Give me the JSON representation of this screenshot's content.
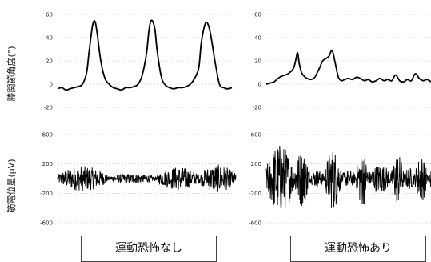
{
  "labels": {
    "row1_ylabel": "膝関節角度(°)",
    "row2_ylabel": "筋電位量(μV)",
    "col1_caption": "運動恐怖なし",
    "col2_caption": "運動恐怖あり"
  },
  "chart_data": [
    {
      "type": "line",
      "panel": "top-left",
      "ylabel": "膝関節角度(°)",
      "ylim": [
        -20,
        60
      ],
      "yticks": [
        60,
        40,
        20,
        0,
        -20
      ],
      "grid": "dashed horizontal",
      "x": [
        0,
        5,
        10,
        15,
        20,
        25,
        30,
        35,
        38,
        42,
        45,
        48,
        52,
        57,
        62,
        67,
        72,
        77,
        82,
        87,
        92,
        97,
        102,
        107,
        110,
        113,
        117,
        120,
        125,
        130,
        135,
        140,
        145,
        150,
        155,
        160,
        165,
        170,
        173,
        177,
        180,
        184,
        190,
        195,
        200,
        205,
        210
      ],
      "series": [
        {
          "values": [
            -4,
            -3,
            -5,
            -4,
            -3,
            -2,
            0,
            10,
            28,
            50,
            54,
            42,
            20,
            5,
            0,
            -3,
            -4,
            -5,
            -3,
            -3,
            -2,
            0,
            8,
            26,
            46,
            55,
            48,
            28,
            6,
            -1,
            -3,
            -4,
            -3,
            -3,
            -2,
            0,
            5,
            14,
            35,
            50,
            53,
            44,
            18,
            0,
            -3,
            -4,
            -3
          ]
        }
      ]
    },
    {
      "type": "line",
      "panel": "top-right",
      "ylim": [
        -20,
        60
      ],
      "yticks": [
        60,
        40,
        20,
        0,
        -20
      ],
      "grid": "dashed horizontal",
      "x": [
        0,
        5,
        10,
        15,
        20,
        25,
        30,
        35,
        38,
        40,
        42,
        45,
        48,
        52,
        57,
        62,
        65,
        68,
        72,
        76,
        80,
        84,
        88,
        92,
        96,
        100,
        105,
        110,
        115,
        120,
        125,
        130,
        135,
        140,
        145,
        150,
        155,
        160,
        165,
        170,
        175,
        180,
        185,
        190,
        195,
        200,
        205,
        210
      ],
      "series": [
        {
          "values": [
            0,
            1,
            2,
            5,
            7,
            8,
            10,
            14,
            22,
            27,
            18,
            10,
            7,
            5,
            4,
            6,
            10,
            14,
            20,
            22,
            24,
            29,
            18,
            6,
            3,
            4,
            5,
            4,
            6,
            5,
            3,
            4,
            2,
            3,
            5,
            3,
            4,
            3,
            8,
            3,
            2,
            4,
            3,
            9,
            5,
            3,
            4,
            2
          ]
        }
      ]
    },
    {
      "type": "line",
      "panel": "bottom-left",
      "ylabel": "筋電位量(μV)",
      "ylim": [
        -600,
        600
      ],
      "yticks": [
        600,
        200,
        -200,
        -600
      ],
      "grid": "dashed horizontal",
      "bursts": [
        {
          "start": 0,
          "end": 60,
          "amplitude": 170
        },
        {
          "start": 60,
          "end": 120,
          "amplitude": 70
        },
        {
          "start": 120,
          "end": 170,
          "amplitude": 160
        },
        {
          "start": 170,
          "end": 215,
          "amplitude": 190
        }
      ]
    },
    {
      "type": "line",
      "panel": "bottom-right",
      "ylim": [
        -600,
        600
      ],
      "yticks": [
        600,
        200,
        -200,
        -600
      ],
      "grid": "dashed horizontal",
      "bursts": [
        {
          "start": 0,
          "end": 35,
          "amplitude": 480
        },
        {
          "start": 35,
          "end": 55,
          "amplitude": 380
        },
        {
          "start": 55,
          "end": 75,
          "amplitude": 120
        },
        {
          "start": 75,
          "end": 95,
          "amplitude": 420
        },
        {
          "start": 95,
          "end": 115,
          "amplitude": 120
        },
        {
          "start": 115,
          "end": 130,
          "amplitude": 380
        },
        {
          "start": 130,
          "end": 160,
          "amplitude": 200
        },
        {
          "start": 160,
          "end": 175,
          "amplitude": 350
        },
        {
          "start": 175,
          "end": 190,
          "amplitude": 150
        },
        {
          "start": 190,
          "end": 205,
          "amplitude": 320
        },
        {
          "start": 205,
          "end": 215,
          "amplitude": 120
        }
      ]
    }
  ]
}
